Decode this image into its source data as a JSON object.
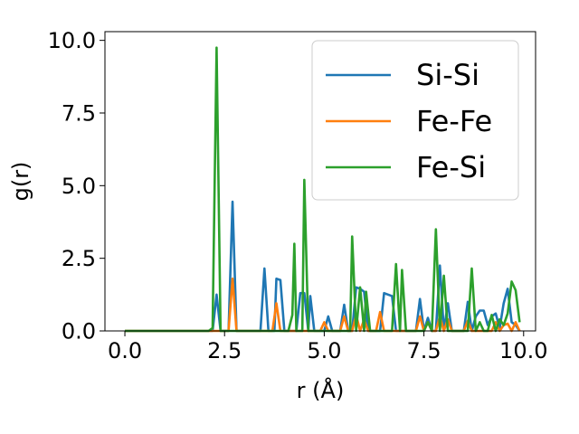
{
  "chart_data": {
    "type": "line",
    "xlabel": "r (Å)",
    "ylabel": "g(r)",
    "xlim": [
      -0.5,
      10.3
    ],
    "ylim": [
      0,
      10.3
    ],
    "xticks": [
      "0.0",
      "2.5",
      "5.0",
      "7.5",
      "10.0"
    ],
    "yticks": [
      "0.0",
      "2.5",
      "5.0",
      "7.5",
      "10.0"
    ],
    "xtick_values": [
      0,
      2.5,
      5.0,
      7.5,
      10.0
    ],
    "ytick_values": [
      0,
      2.5,
      5.0,
      7.5,
      10.0
    ],
    "grid": false,
    "legend_position": "top-right",
    "series": [
      {
        "name": "Si-Si",
        "color": "#1f77b4",
        "points": [
          [
            0,
            0
          ],
          [
            2.2,
            0
          ],
          [
            2.3,
            1.25
          ],
          [
            2.4,
            0
          ],
          [
            2.6,
            0
          ],
          [
            2.7,
            4.45
          ],
          [
            2.8,
            0
          ],
          [
            3.4,
            0
          ],
          [
            3.5,
            2.15
          ],
          [
            3.6,
            0
          ],
          [
            3.75,
            0
          ],
          [
            3.8,
            1.8
          ],
          [
            3.9,
            1.75
          ],
          [
            4.0,
            0
          ],
          [
            4.3,
            0
          ],
          [
            4.4,
            1.3
          ],
          [
            4.5,
            1.3
          ],
          [
            4.6,
            0
          ],
          [
            4.65,
            1.2
          ],
          [
            4.75,
            0
          ],
          [
            5.0,
            0
          ],
          [
            5.1,
            0.5
          ],
          [
            5.2,
            0
          ],
          [
            5.4,
            0
          ],
          [
            5.5,
            0.9
          ],
          [
            5.6,
            0
          ],
          [
            5.7,
            0
          ],
          [
            5.8,
            1.5
          ],
          [
            5.9,
            1.45
          ],
          [
            6.0,
            1.35
          ],
          [
            6.1,
            0
          ],
          [
            6.4,
            0
          ],
          [
            6.5,
            1.3
          ],
          [
            6.6,
            1.25
          ],
          [
            6.7,
            1.2
          ],
          [
            6.8,
            0
          ],
          [
            7.3,
            0
          ],
          [
            7.4,
            1.1
          ],
          [
            7.5,
            0
          ],
          [
            7.6,
            0.45
          ],
          [
            7.7,
            0
          ],
          [
            7.8,
            0
          ],
          [
            7.9,
            2.25
          ],
          [
            8.0,
            0
          ],
          [
            8.1,
            0.95
          ],
          [
            8.2,
            0
          ],
          [
            8.5,
            0
          ],
          [
            8.6,
            1.0
          ],
          [
            8.7,
            0
          ],
          [
            8.8,
            0.5
          ],
          [
            8.9,
            0.7
          ],
          [
            9.0,
            0.7
          ],
          [
            9.1,
            0.2
          ],
          [
            9.2,
            0.5
          ],
          [
            9.3,
            0.6
          ],
          [
            9.4,
            0.1
          ],
          [
            9.5,
            0.95
          ],
          [
            9.6,
            1.45
          ],
          [
            9.7,
            0.3
          ],
          [
            9.8,
            0.2
          ],
          [
            9.9,
            0
          ]
        ]
      },
      {
        "name": "Fe-Fe",
        "color": "#ff7f0e",
        "points": [
          [
            0,
            0
          ],
          [
            2.6,
            0
          ],
          [
            2.7,
            1.8
          ],
          [
            2.8,
            0
          ],
          [
            3.7,
            0
          ],
          [
            3.8,
            0.95
          ],
          [
            3.9,
            0
          ],
          [
            4.9,
            0
          ],
          [
            5.0,
            0.3
          ],
          [
            5.1,
            0
          ],
          [
            5.4,
            0
          ],
          [
            5.5,
            0.5
          ],
          [
            5.6,
            0
          ],
          [
            5.7,
            0
          ],
          [
            5.8,
            0.55
          ],
          [
            5.9,
            0
          ],
          [
            6.0,
            0.4
          ],
          [
            6.1,
            0
          ],
          [
            6.3,
            0
          ],
          [
            6.4,
            0.65
          ],
          [
            6.5,
            0
          ],
          [
            7.3,
            0
          ],
          [
            7.4,
            0.5
          ],
          [
            7.5,
            0
          ],
          [
            7.6,
            0.3
          ],
          [
            7.7,
            0
          ],
          [
            7.8,
            0
          ],
          [
            7.9,
            0.5
          ],
          [
            8.0,
            0
          ],
          [
            8.1,
            0.4
          ],
          [
            8.2,
            0
          ],
          [
            8.5,
            0
          ],
          [
            8.6,
            0.35
          ],
          [
            8.7,
            0
          ],
          [
            9.2,
            0
          ],
          [
            9.3,
            0.3
          ],
          [
            9.4,
            0
          ],
          [
            9.5,
            0.2
          ],
          [
            9.6,
            0.25
          ],
          [
            9.7,
            0
          ],
          [
            9.8,
            0.3
          ],
          [
            9.9,
            0
          ]
        ]
      },
      {
        "name": "Fe-Si",
        "color": "#2ca02c",
        "points": [
          [
            0,
            0
          ],
          [
            2.1,
            0
          ],
          [
            2.2,
            0.1
          ],
          [
            2.3,
            9.75
          ],
          [
            2.4,
            0
          ],
          [
            4.1,
            0
          ],
          [
            4.2,
            0.55
          ],
          [
            4.25,
            3.0
          ],
          [
            4.3,
            0
          ],
          [
            4.45,
            0
          ],
          [
            4.5,
            5.2
          ],
          [
            4.6,
            0
          ],
          [
            5.65,
            0
          ],
          [
            5.7,
            3.25
          ],
          [
            5.8,
            0
          ],
          [
            5.9,
            1.5
          ],
          [
            6.0,
            0
          ],
          [
            6.05,
            1.35
          ],
          [
            6.15,
            0
          ],
          [
            6.7,
            0
          ],
          [
            6.8,
            2.3
          ],
          [
            6.9,
            0
          ],
          [
            6.95,
            2.1
          ],
          [
            7.05,
            0
          ],
          [
            7.5,
            0
          ],
          [
            7.6,
            0.3
          ],
          [
            7.7,
            0
          ],
          [
            7.8,
            3.5
          ],
          [
            7.9,
            0
          ],
          [
            8.0,
            1.9
          ],
          [
            8.1,
            0
          ],
          [
            8.6,
            0
          ],
          [
            8.7,
            2.15
          ],
          [
            8.8,
            0
          ],
          [
            8.9,
            0.3
          ],
          [
            9.0,
            0
          ],
          [
            9.1,
            0
          ],
          [
            9.2,
            0.55
          ],
          [
            9.3,
            0
          ],
          [
            9.4,
            0.4
          ],
          [
            9.5,
            0.2
          ],
          [
            9.6,
            0.6
          ],
          [
            9.7,
            1.7
          ],
          [
            9.8,
            1.4
          ],
          [
            9.9,
            0.3
          ]
        ]
      }
    ]
  }
}
